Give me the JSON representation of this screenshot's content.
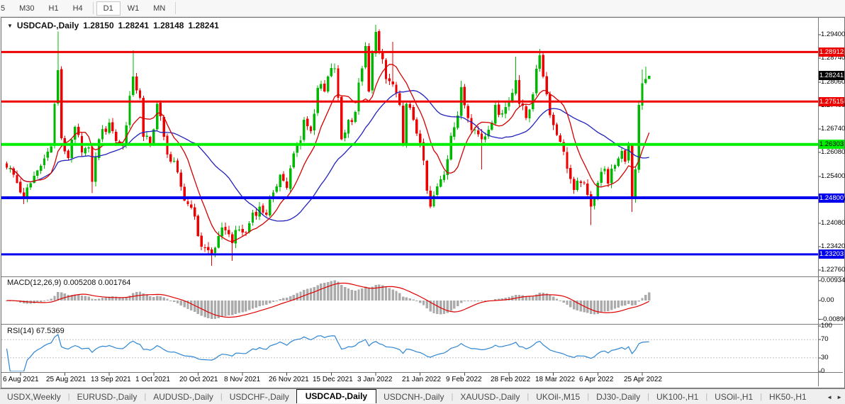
{
  "toolbar": {
    "timeframes": [
      "5",
      "M30",
      "H1",
      "H4",
      "D1",
      "W1",
      "MN"
    ],
    "active": "D1",
    "separators_after": [
      3,
      6
    ]
  },
  "chart": {
    "title": "USDCAD-,Daily",
    "ohlc": {
      "open": "1.28150",
      "high": "1.28241",
      "low": "1.28148",
      "close": "1.28241"
    },
    "macd": {
      "label": "MACD(12,26,9)",
      "value_main": "0.005208",
      "value_signal": "0.001764"
    },
    "rsi": {
      "label": "RSI(14)",
      "value": "67.5369"
    }
  },
  "chart_data": {
    "type": "candlestick",
    "symbol": "USDCAD",
    "timeframe": "Daily",
    "candle_count": 189,
    "x_date_labels": [
      "6 Aug 2021",
      "25 Aug 2021",
      "13 Sep 2021",
      "1 Oct 2021",
      "20 Oct 2021",
      "8 Nov 2021",
      "26 Nov 2021",
      "15 Dec 2021",
      "3 Jan 2022",
      "21 Jan 2022",
      "9 Feb 2022",
      "28 Feb 2022",
      "18 Mar 2022",
      "6 Apr 2022",
      "25 Apr 2022"
    ],
    "price_axis_ticks": [
      "1.29400",
      "1.28740",
      "1.28060",
      "1.27400",
      "1.26740",
      "1.26080",
      "1.25400",
      "1.24740",
      "1.24080",
      "1.23420",
      "1.22760"
    ],
    "y_range": [
      1.226,
      1.2984
    ],
    "levels": [
      {
        "price": 1.28912,
        "label": "1.28912",
        "color": "#ee0000",
        "width": 3,
        "text": "#ffffff"
      },
      {
        "price": 1.27515,
        "label": "1.27515",
        "color": "#ee0000",
        "width": 3,
        "text": "#ffffff"
      },
      {
        "price": 1.26303,
        "label": "1.26303",
        "color": "#00ee00",
        "width": 4,
        "text": "#000000"
      },
      {
        "price": 1.248,
        "label": "1.24800",
        "color": "#0000ee",
        "width": 4,
        "text": "#ffffff"
      },
      {
        "price": 1.23203,
        "label": "1.23203",
        "color": "#0000ee",
        "width": 3,
        "text": "#ffffff"
      }
    ],
    "current_price": {
      "price": 1.28241,
      "label": "1.28241",
      "color": "#000000",
      "text": "#ffffff"
    },
    "last_candle_ohlc": [
      1.2815,
      1.28241,
      1.28148,
      1.28241
    ],
    "price_anchors": [
      [
        0,
        1.2565
      ],
      [
        2,
        1.2545
      ],
      [
        5,
        1.248,
        null,
        1.2462
      ],
      [
        8,
        1.2542
      ],
      [
        10,
        1.257
      ],
      [
        13,
        1.2625
      ],
      [
        15,
        1.284,
        1.2949,
        null
      ],
      [
        16,
        1.2648
      ],
      [
        18,
        1.2592
      ],
      [
        20,
        1.268
      ],
      [
        22,
        1.2608
      ],
      [
        24,
        1.2622
      ],
      [
        25,
        1.2525,
        null,
        1.2493
      ],
      [
        27,
        1.2645
      ],
      [
        30,
        1.2692
      ],
      [
        32,
        1.264
      ],
      [
        34,
        1.2628
      ],
      [
        36,
        1.2768
      ],
      [
        37,
        1.2822,
        1.2896,
        null
      ],
      [
        39,
        1.2762
      ],
      [
        40,
        1.2652
      ],
      [
        42,
        1.2632
      ],
      [
        44,
        1.2745
      ],
      [
        46,
        1.2652
      ],
      [
        48,
        1.2582
      ],
      [
        50,
        1.2552
      ],
      [
        52,
        1.2472
      ],
      [
        54,
        1.2452
      ],
      [
        56,
        1.2372
      ],
      [
        57,
        1.2342
      ],
      [
        60,
        1.2322,
        null,
        1.2288
      ],
      [
        62,
        1.2372
      ],
      [
        64,
        1.2388
      ],
      [
        66,
        1.2352,
        null,
        1.2302
      ],
      [
        68,
        1.239
      ],
      [
        70,
        1.2382
      ],
      [
        72,
        1.2438
      ],
      [
        74,
        1.2455
      ],
      [
        76,
        1.2432
      ],
      [
        78,
        1.2495
      ],
      [
        80,
        1.2545
      ],
      [
        82,
        1.2508
      ],
      [
        84,
        1.2605
      ],
      [
        86,
        1.2642
      ],
      [
        87,
        1.27
      ],
      [
        89,
        1.2668
      ],
      [
        91,
        1.279
      ],
      [
        93,
        1.278
      ],
      [
        94,
        1.2822
      ],
      [
        96,
        1.2845
      ],
      [
        97,
        1.2762
      ],
      [
        98,
        1.2645
      ],
      [
        100,
        1.27
      ],
      [
        102,
        1.2722
      ],
      [
        103,
        1.2805
      ],
      [
        105,
        1.2908
      ],
      [
        106,
        1.278
      ],
      [
        107,
        1.2888
      ],
      [
        108,
        1.2948,
        1.2968,
        null
      ],
      [
        109,
        1.2895
      ],
      [
        111,
        1.2815
      ],
      [
        113,
        1.28,
        1.292,
        null
      ],
      [
        115,
        1.2742
      ],
      [
        116,
        1.2632
      ],
      [
        117,
        1.2745
      ],
      [
        119,
        1.27
      ],
      [
        121,
        1.2635
      ],
      [
        123,
        1.25
      ],
      [
        124,
        1.2455,
        null,
        1.245
      ],
      [
        126,
        1.2512
      ],
      [
        128,
        1.2545
      ],
      [
        130,
        1.2655
      ],
      [
        132,
        1.2712
      ],
      [
        133,
        1.2792,
        1.281,
        null
      ],
      [
        135,
        1.2705
      ],
      [
        137,
        1.2672
      ],
      [
        139,
        1.2645,
        null,
        1.256
      ],
      [
        141,
        1.2672
      ],
      [
        143,
        1.2742
      ],
      [
        145,
        1.2718
      ],
      [
        147,
        1.2752
      ],
      [
        149,
        1.2812,
        1.2878,
        null
      ],
      [
        150,
        1.2745
      ],
      [
        152,
        1.2705
      ],
      [
        154,
        1.2772
      ],
      [
        156,
        1.2882,
        1.29,
        null
      ],
      [
        157,
        1.2822
      ],
      [
        158,
        1.2772
      ],
      [
        160,
        1.2685
      ],
      [
        162,
        1.2638
      ],
      [
        164,
        1.2562
      ],
      [
        166,
        1.2502
      ],
      [
        168,
        1.2522
      ],
      [
        170,
        1.2488
      ],
      [
        171,
        1.2455,
        null,
        1.2403
      ],
      [
        173,
        1.2522
      ],
      [
        175,
        1.2562
      ],
      [
        176,
        1.252
      ],
      [
        178,
        1.2572
      ],
      [
        180,
        1.2612
      ],
      [
        181,
        1.2582
      ],
      [
        182,
        1.2628
      ],
      [
        183,
        1.2478,
        null,
        1.244
      ],
      [
        184,
        1.256
      ],
      [
        185,
        1.2742
      ],
      [
        186,
        1.2803,
        1.2842,
        1.273
      ],
      [
        187,
        1.2815,
        1.285,
        null
      ],
      [
        188,
        1.28241
      ]
    ],
    "colors": {
      "bull": "#00b800",
      "bear": "#ee0000",
      "ma_fast": "#d40000",
      "ma_slow": "#2222bb",
      "macd_hist": "#ababab",
      "macd_signal": "#e00000",
      "rsi_line": "#2f86d2"
    },
    "moving_averages": [
      {
        "period": 10,
        "color": "#d40000"
      },
      {
        "period": 30,
        "color": "#2222bb"
      }
    ],
    "macd_axis": [
      "0.009345",
      "0.00",
      "-0.00890"
    ],
    "rsi_axis": [
      "100",
      "70",
      "30",
      "0"
    ],
    "rsi_levels": [
      70,
      30
    ]
  },
  "tabs": {
    "items": [
      "USDX,Weekly",
      "EURUSD-,Daily",
      "AUDUSD-,Daily",
      "USDCHF-,Daily",
      "USDCAD-,Daily",
      "USDCNH-,Daily",
      "XAUUSD-,Daily",
      "UKOil-,M15",
      "DJ30-,Daily",
      "UK100-,H1",
      "USOil-,H1",
      "HK50-,H1"
    ],
    "active_index": 4,
    "scroll_left": "◄",
    "scroll_right": "►"
  }
}
